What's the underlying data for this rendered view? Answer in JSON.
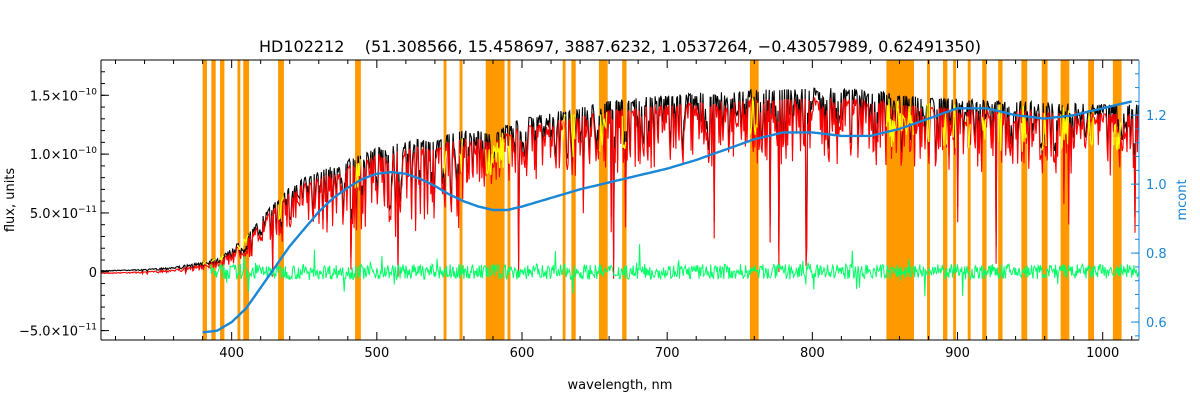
{
  "chart_data": {
    "type": "line",
    "title": "HD102212    (51.308566, 15.458697, 3887.6232, 1.0537264, −0.43057989, 0.62491350)",
    "xlabel": "wavelength, nm",
    "ylabel": "flux, units",
    "ylabel_right": "mcont",
    "xlim": [
      310,
      1025
    ],
    "ylim": [
      -5.8e-11,
      1.8e-10
    ],
    "ylim_right": [
      0.548,
      1.36
    ],
    "x_ticks": [
      400,
      500,
      600,
      700,
      800,
      900,
      1000
    ],
    "x_tick_labels": [
      "400",
      "500",
      "600",
      "700",
      "800",
      "900",
      "1000"
    ],
    "y_ticks": [
      -5e-11,
      0,
      5e-11,
      1e-10,
      1.5e-10
    ],
    "y_tick_labels": [
      {
        "m": "−5.0×10",
        "e": "−11"
      },
      {
        "m": "0",
        "e": ""
      },
      {
        "m": "5.0×10",
        "e": "−11"
      },
      {
        "m": "1.0×10",
        "e": "−10"
      },
      {
        "m": "1.5×10",
        "e": "−10"
      }
    ],
    "y_right_ticks": [
      0.6,
      0.8,
      1.0,
      1.2
    ],
    "y_right_tick_labels": [
      "0.6",
      "0.8",
      "1.0",
      "1.2"
    ],
    "grid": false,
    "legend": "none",
    "colors": {
      "observed": "#000000",
      "model": "#ff0000",
      "residual": "#00ff66",
      "mcont": "#1a86d6",
      "masked_band": "#ff9900",
      "highlight": "#ffff00",
      "right_axis": "#1a86d6"
    },
    "series": [
      {
        "key": "mcont",
        "axis": "right",
        "x": [
          380,
          390,
          400,
          410,
          420,
          430,
          440,
          450,
          460,
          470,
          480,
          490,
          500,
          510,
          520,
          530,
          540,
          550,
          560,
          570,
          580,
          590,
          600,
          620,
          640,
          660,
          680,
          700,
          720,
          740,
          760,
          780,
          800,
          820,
          840,
          860,
          880,
          900,
          920,
          940,
          960,
          980,
          1000,
          1020
        ],
        "y": [
          0.57,
          0.575,
          0.6,
          0.64,
          0.7,
          0.76,
          0.82,
          0.87,
          0.92,
          0.96,
          0.99,
          1.015,
          1.03,
          1.035,
          1.03,
          1.015,
          0.995,
          0.97,
          0.95,
          0.935,
          0.925,
          0.925,
          0.935,
          0.96,
          0.985,
          1.005,
          1.025,
          1.045,
          1.07,
          1.1,
          1.13,
          1.15,
          1.15,
          1.14,
          1.14,
          1.16,
          1.19,
          1.22,
          1.22,
          1.2,
          1.19,
          1.2,
          1.22,
          1.24
        ]
      },
      {
        "key": "observed_envelope",
        "axis": "left",
        "x": [
          310,
          340,
          360,
          380,
          395,
          410,
          420,
          430,
          440,
          450,
          460,
          470,
          480,
          490,
          500,
          510,
          520,
          530,
          540,
          550,
          560,
          570,
          580,
          590,
          600,
          620,
          640,
          660,
          680,
          700,
          720,
          740,
          760,
          780,
          800,
          820,
          840,
          860,
          880,
          900,
          920,
          940,
          960,
          980,
          1000,
          1025
        ],
        "y": [
          1e-12,
          2e-12,
          4e-12,
          8e-12,
          1.5e-11,
          3e-11,
          4.5e-11,
          6e-11,
          7.2e-11,
          8e-11,
          8.5e-11,
          9e-11,
          9.6e-11,
          1e-10,
          1.05e-10,
          1.08e-10,
          1.1e-10,
          1.13e-10,
          1.1e-10,
          1.17e-10,
          1.2e-10,
          1.2e-10,
          1.16e-10,
          1.25e-10,
          1.3e-10,
          1.35e-10,
          1.4e-10,
          1.45e-10,
          1.48e-10,
          1.5e-10,
          1.52e-10,
          1.53e-10,
          1.55e-10,
          1.55e-10,
          1.56e-10,
          1.56e-10,
          1.55e-10,
          1.5e-10,
          1.48e-10,
          1.47e-10,
          1.46e-10,
          1.45e-10,
          1.44e-10,
          1.43e-10,
          1.42e-10,
          1.42e-10
        ]
      }
    ],
    "masked_bands_nm": [
      [
        380,
        383
      ],
      [
        386,
        389
      ],
      [
        392,
        395
      ],
      [
        404,
        406
      ],
      [
        408,
        412
      ],
      [
        432,
        436
      ],
      [
        485,
        489
      ],
      [
        546,
        548
      ],
      [
        557,
        559
      ],
      [
        575,
        588
      ],
      [
        590,
        592
      ],
      [
        628,
        630
      ],
      [
        634,
        637
      ],
      [
        653,
        659
      ],
      [
        669,
        672
      ],
      [
        757,
        763
      ],
      [
        851,
        870
      ],
      [
        879,
        881
      ],
      [
        890,
        893
      ],
      [
        897,
        899
      ],
      [
        907,
        909
      ],
      [
        917,
        920
      ],
      [
        928,
        931
      ],
      [
        944,
        948
      ],
      [
        958,
        962
      ],
      [
        971,
        977
      ],
      [
        990,
        994
      ],
      [
        1007,
        1013
      ]
    ]
  }
}
